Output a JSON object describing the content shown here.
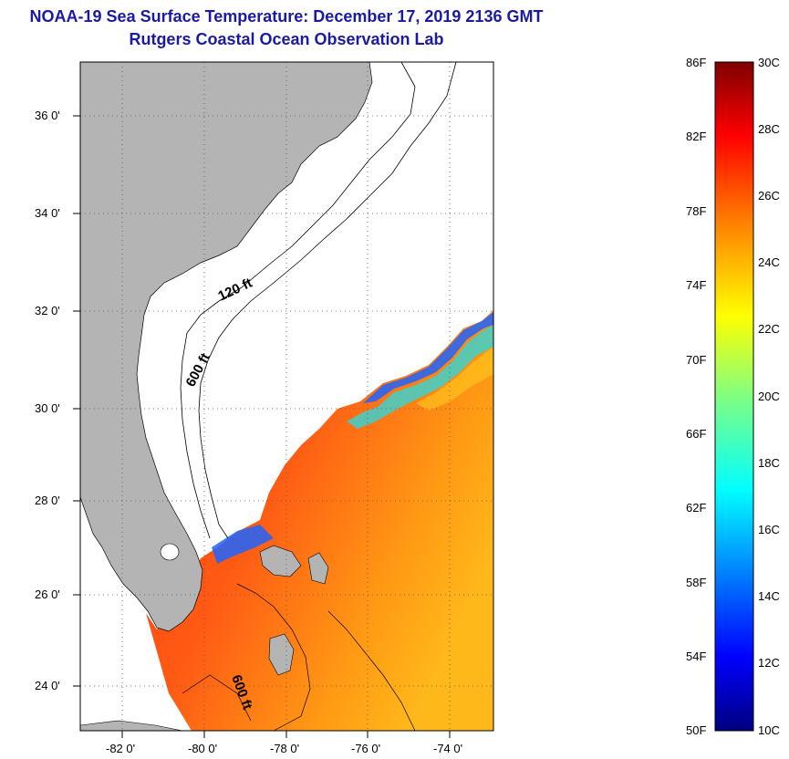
{
  "title": {
    "line1": "NOAA-19 Sea Surface Temperature:  December 17, 2019 2136 GMT",
    "line2": "Rutgers Coastal Ocean Observation Lab"
  },
  "map": {
    "lat_ticks": [
      "36 0'",
      "34 0'",
      "32 0'",
      "30 0'",
      "28 0'",
      "26 0'",
      "24 0'"
    ],
    "lon_ticks": [
      "-82 0'",
      "-80 0'",
      "-78 0'",
      "-76 0'",
      "-74 0'"
    ],
    "contour_labels": [
      "120 ft",
      "600 ft",
      "600 ft"
    ],
    "colors": {
      "land": "#b4b4b4",
      "no_data": "#ffffff",
      "sst_warm": "#ff3a12",
      "sst_mid": "#ffa010",
      "sst_cool": "#1e64ff"
    }
  },
  "colorbar": {
    "fahrenheit": [
      "86F",
      "82F",
      "78F",
      "74F",
      "70F",
      "66F",
      "62F",
      "58F",
      "54F",
      "50F"
    ],
    "celsius": [
      "30C",
      "28C",
      "26C",
      "24C",
      "22C",
      "20C",
      "18C",
      "16C",
      "14C",
      "12C",
      "10C"
    ],
    "stops": [
      "#00007f",
      "#0000ff",
      "#0080ff",
      "#00ffff",
      "#80ff80",
      "#ffff00",
      "#ff8000",
      "#ff0000",
      "#7f0000"
    ]
  }
}
